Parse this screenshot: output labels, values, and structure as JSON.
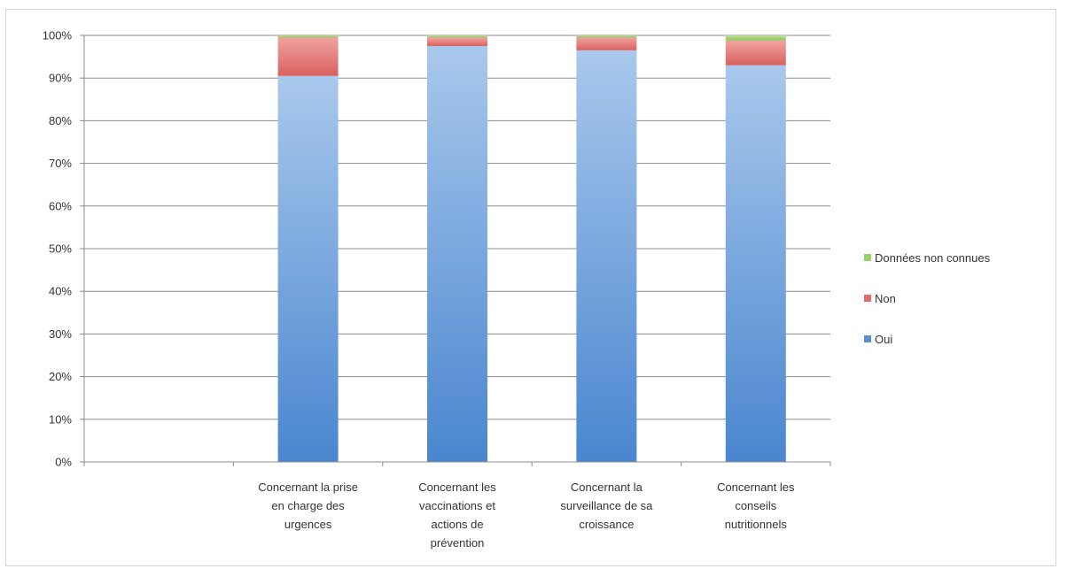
{
  "chart_data": {
    "type": "bar",
    "stacked": true,
    "title": "",
    "xlabel": "",
    "ylabel": "",
    "ylim": [
      0,
      100
    ],
    "y_unit": "%",
    "y_ticks": [
      "0%",
      "10%",
      "20%",
      "30%",
      "40%",
      "50%",
      "60%",
      "70%",
      "80%",
      "90%",
      "100%"
    ],
    "categories": [
      "",
      [
        "Concernant la prise",
        "en charge des",
        "urgences"
      ],
      [
        "Concernant les",
        "vaccinations et",
        "actions de",
        "prévention"
      ],
      [
        "Concernant la",
        "surveillance de sa",
        "croissance"
      ],
      [
        "Concernant les",
        "conseils",
        "nutritionnels"
      ]
    ],
    "series": [
      {
        "name": "Oui",
        "color": "#5b8fd1",
        "values": [
          null,
          90.5,
          97.5,
          96.5,
          93.0
        ]
      },
      {
        "name": "Non",
        "color": "#e26b69",
        "values": [
          null,
          9.0,
          2.0,
          3.0,
          5.8
        ]
      },
      {
        "name": "Données non connues",
        "color": "#9bcf6a",
        "values": [
          null,
          0.5,
          0.5,
          0.5,
          1.2
        ]
      }
    ],
    "legend": {
      "position": "right",
      "order": [
        "Données non connues",
        "Non",
        "Oui"
      ]
    },
    "grid": true
  }
}
